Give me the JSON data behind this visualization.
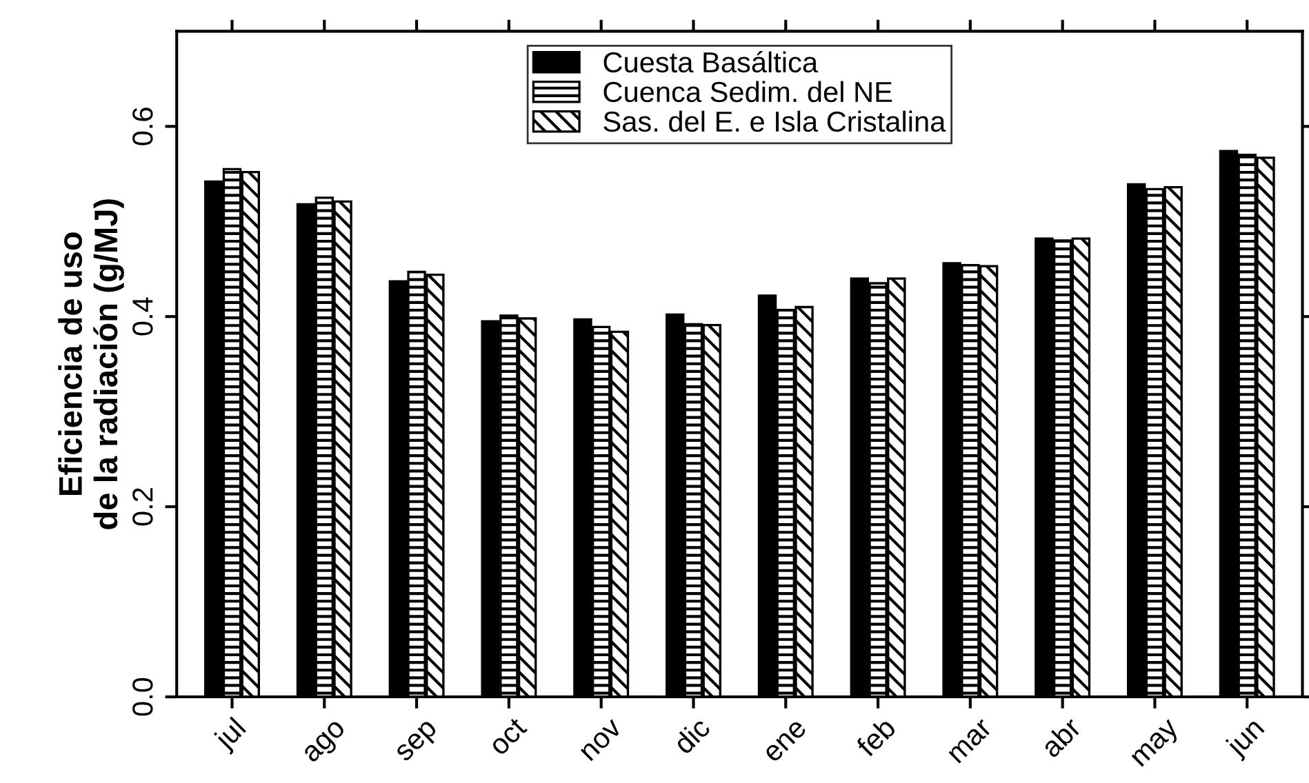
{
  "chart_data": {
    "type": "bar",
    "ylabel": "Eficiencia de uso\nde la radiación (g/MJ)",
    "categories": [
      "jul",
      "ago",
      "sep",
      "oct",
      "nov",
      "dic",
      "ene",
      "feb",
      "mar",
      "abr",
      "may",
      "jun"
    ],
    "series": [
      {
        "name": "Cuesta Basáltica",
        "color": "#000000",
        "values": [
          0.542,
          0.518,
          0.437,
          0.395,
          0.397,
          0.402,
          0.422,
          0.44,
          0.456,
          0.482,
          0.539,
          0.574
        ]
      },
      {
        "name": "Cuenca Sedim. del NE",
        "color": "#000000",
        "values": [
          0.555,
          0.525,
          0.447,
          0.401,
          0.389,
          0.392,
          0.407,
          0.435,
          0.454,
          0.48,
          0.534,
          0.57
        ]
      },
      {
        "name": "Sas. del E. e Isla Cristalina",
        "color": "#000000",
        "values": [
          0.552,
          0.521,
          0.444,
          0.398,
          0.384,
          0.391,
          0.41,
          0.44,
          0.453,
          0.482,
          0.536,
          0.567
        ]
      }
    ],
    "ylim": [
      0,
      0.7
    ],
    "yticks": [
      {
        "value": 0,
        "label": "0.0"
      },
      0.2,
      0.4,
      0.6
    ],
    "legend": "top",
    "grid": false
  }
}
